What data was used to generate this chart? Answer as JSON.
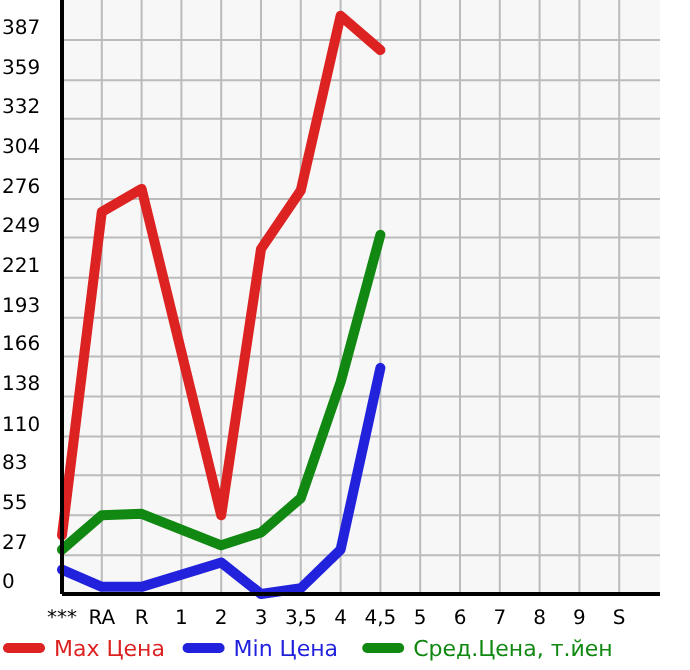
{
  "chart_data": {
    "type": "line",
    "categories": [
      "***",
      "RA",
      "R",
      "1",
      "2",
      "3",
      "3,5",
      "4",
      "4,5",
      "5",
      "6",
      "7",
      "8",
      "9",
      "S"
    ],
    "series": [
      {
        "name": "Max Цена",
        "color": "#dd2222",
        "values": [
          41,
          267,
          283,
          null,
          55,
          241,
          282,
          404,
          380,
          null,
          null,
          null,
          null,
          null,
          null
        ]
      },
      {
        "name": "Min Цена",
        "color": "#2222dd",
        "values": [
          17,
          5,
          5,
          null,
          22,
          0,
          4,
          31,
          158,
          null,
          null,
          null,
          null,
          null,
          null
        ]
      },
      {
        "name": "Сред.Цена, т.йен",
        "color": "#118811",
        "values": [
          31,
          55,
          56,
          null,
          34,
          43,
          67,
          148,
          251,
          null,
          null,
          null,
          null,
          null,
          null
        ]
      }
    ],
    "ylim": [
      0,
      415
    ],
    "yticks": [
      0,
      27,
      55,
      83,
      110,
      138,
      166,
      193,
      221,
      249,
      276,
      304,
      332,
      359,
      387
    ],
    "grid": true,
    "legend": "bottom",
    "marker": "none",
    "line_style": "solid"
  }
}
